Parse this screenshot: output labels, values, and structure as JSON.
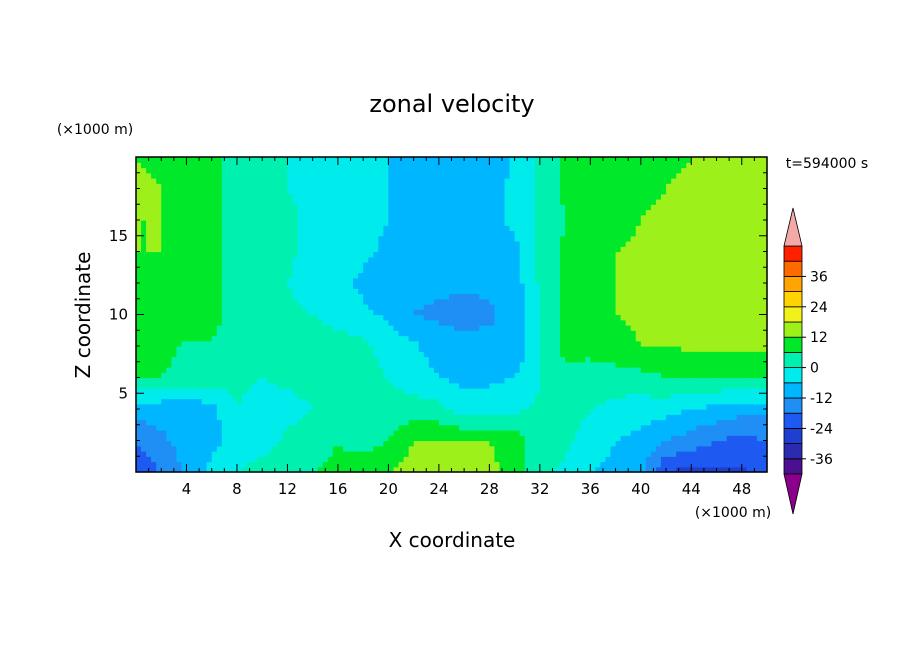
{
  "chart_data": {
    "type": "heatmap",
    "title": "zonal velocity",
    "xlabel": "X coordinate",
    "ylabel": "Z coordinate",
    "x_unit": "(×1000 m)",
    "y_unit": "(×1000 m)",
    "time_label": "t=594000 s",
    "xlim": [
      0,
      50
    ],
    "ylim": [
      0,
      20
    ],
    "xticks": [
      4,
      8,
      12,
      16,
      20,
      24,
      28,
      32,
      36,
      40,
      44,
      48
    ],
    "yticks": [
      5,
      10,
      15
    ],
    "colorbar": {
      "ticks": [
        36,
        24,
        12,
        0,
        -12,
        -24,
        -36
      ],
      "levels": [
        -42,
        -36,
        -30,
        -24,
        -18,
        -12,
        -6,
        0,
        6,
        12,
        18,
        24,
        30,
        36,
        42
      ],
      "colors": [
        "#4b0f8f",
        "#2b2bb0",
        "#1f3fd0",
        "#1e5af2",
        "#1f8ff5",
        "#00b6ff",
        "#00ecec",
        "#00f0b0",
        "#00e82a",
        "#9ef01a",
        "#f2f21a",
        "#ffd400",
        "#ffa400",
        "#ff6a00",
        "#ff2000"
      ],
      "under_color": "#8b008b",
      "over_color": "#f4a9a9"
    },
    "x": [
      0,
      2,
      4,
      6,
      8,
      10,
      12,
      14,
      16,
      18,
      20,
      22,
      24,
      26,
      28,
      30,
      32,
      34,
      36,
      38,
      40,
      42,
      44,
      46,
      48,
      50
    ],
    "y": [
      0,
      2,
      4,
      6,
      8,
      10,
      12,
      14,
      16,
      18,
      20
    ],
    "z": [
      [
        -22,
        -18,
        -10,
        -4,
        0,
        2,
        3,
        6,
        7,
        9,
        12,
        14,
        16,
        16,
        14,
        9,
        1,
        -1,
        -6,
        -8,
        -10,
        -24,
        -26,
        -26,
        -25,
        -22
      ],
      [
        -18,
        -13,
        -10,
        -8,
        -4,
        -2,
        1,
        4,
        6,
        4,
        6,
        12,
        12,
        12,
        12,
        9,
        3,
        1,
        -2,
        -6,
        -8,
        -12,
        -15,
        -18,
        -20,
        -18
      ],
      [
        -9,
        -10,
        -12,
        -8,
        0,
        -2,
        -2,
        0,
        1,
        2,
        2,
        3,
        2,
        -4,
        -3,
        -1,
        1,
        2,
        0,
        -2,
        -3,
        -4,
        -6,
        -8,
        -10,
        -10
      ],
      [
        6,
        6,
        4,
        4,
        1,
        0,
        1,
        2,
        2,
        2,
        0,
        -3,
        -6,
        -7,
        -7,
        -6,
        0,
        4,
        3,
        3,
        4,
        6,
        6,
        6,
        6,
        6
      ],
      [
        8,
        8,
        5,
        5,
        1,
        6,
        4,
        4,
        3,
        2,
        -3,
        -5,
        -9,
        -10,
        -10,
        -11,
        1,
        8,
        8,
        10,
        12,
        12,
        13,
        13,
        13,
        13
      ],
      [
        10,
        10,
        9,
        9,
        2,
        0,
        1,
        0,
        -3,
        -5,
        -7,
        -12,
        -13,
        -14,
        -13,
        -10,
        1,
        8,
        9,
        12,
        13,
        15,
        17,
        17,
        16,
        15
      ],
      [
        11,
        11,
        10,
        10,
        2,
        1,
        0,
        -2,
        -5,
        -7,
        -9,
        -11,
        -11,
        -11,
        -11,
        -9,
        1,
        7,
        9,
        12,
        13,
        16,
        18,
        18,
        17,
        16
      ],
      [
        12,
        12,
        10,
        9,
        2,
        2,
        1,
        -2,
        -3,
        -5,
        -7,
        -8,
        -7,
        -8,
        -9,
        -8,
        1,
        7,
        10,
        12,
        13,
        15,
        17,
        18,
        17,
        16
      ],
      [
        12,
        12,
        9,
        8,
        2,
        2,
        1,
        -1,
        -3,
        -5,
        -6,
        -6,
        -6,
        -7,
        -7,
        -5,
        1,
        6,
        8,
        10,
        12,
        13,
        15,
        16,
        15,
        15
      ],
      [
        13,
        12,
        10,
        9,
        3,
        2,
        0,
        -1,
        -3,
        -5,
        -6,
        -8,
        -9,
        -9,
        -8,
        -5,
        1,
        7,
        8,
        10,
        11,
        12,
        13,
        13,
        13,
        13
      ],
      [
        12,
        11,
        9,
        8,
        3,
        1,
        0,
        -2,
        -3,
        -5,
        -6,
        -9,
        -11,
        -11,
        -9,
        -5,
        2,
        7,
        8,
        9,
        10,
        11,
        12,
        12,
        12,
        12
      ]
    ]
  }
}
